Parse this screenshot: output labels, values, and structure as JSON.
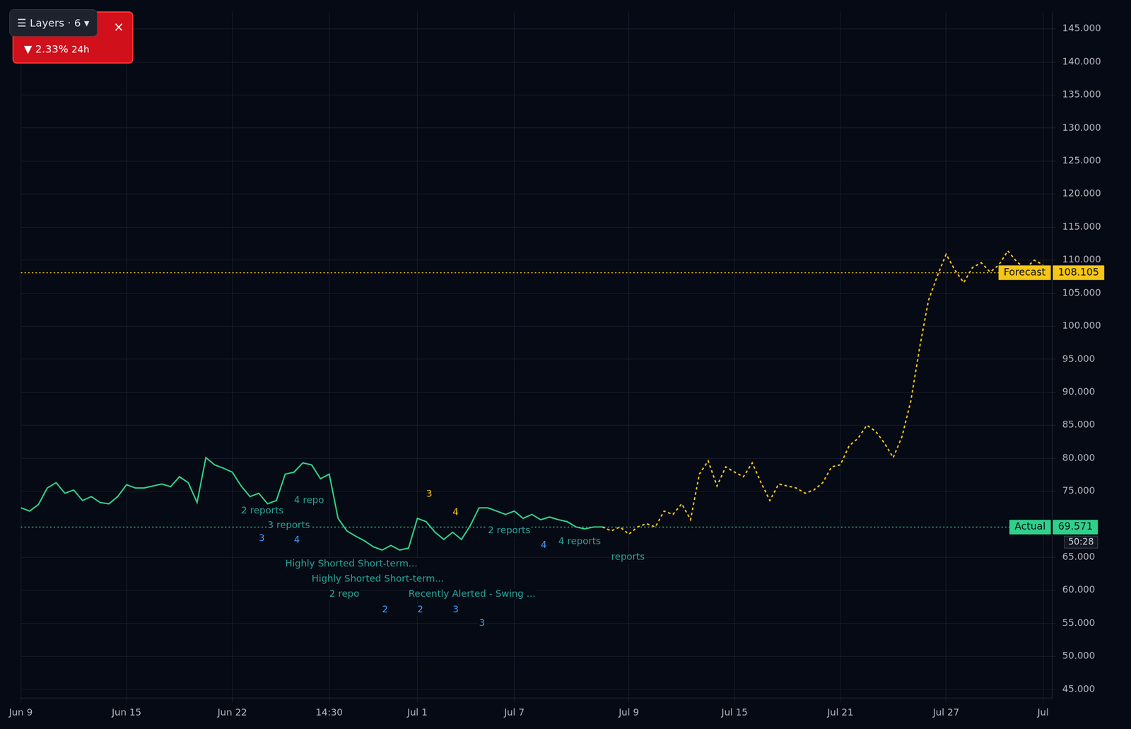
{
  "header": {
    "layers": "☰ Layers · 6 ▾",
    "close": "×",
    "change": "▼ 2.33%",
    "period": "24h"
  },
  "chart_data": {
    "type": "line",
    "categories": [
      "Jun 9",
      null,
      null,
      null,
      null,
      null,
      null,
      null,
      null,
      null,
      null,
      null,
      "Jun 15",
      null,
      null,
      null,
      null,
      null,
      null,
      null,
      null,
      null,
      null,
      null,
      "Jun 22",
      null,
      null,
      null,
      null,
      null,
      null,
      null,
      null,
      null,
      null,
      "14:30",
      null,
      null,
      null,
      null,
      null,
      null,
      null,
      null,
      null,
      "Jul 1",
      null,
      null,
      null,
      null,
      null,
      null,
      null,
      null,
      null,
      null,
      "Jul 7",
      null,
      null,
      null,
      null,
      null,
      null,
      null,
      null,
      null,
      null,
      null,
      null,
      "Jul 9",
      null,
      null,
      null,
      null,
      null,
      null,
      null,
      null,
      null,
      null,
      null,
      "Jul 15",
      null,
      null,
      null,
      null,
      null,
      null,
      null,
      null,
      null,
      null,
      null,
      "Jul 21",
      null,
      null,
      null,
      null,
      null,
      null,
      null,
      null,
      null,
      null,
      null,
      "Jul 27",
      null,
      null,
      null,
      null,
      null,
      null,
      null,
      null,
      null,
      null,
      "Jul",
      null
    ],
    "series": [
      {
        "name": "Actual",
        "color": "#2fd18a",
        "line_style": "solid",
        "values": [
          72.5,
          72.0,
          73.0,
          75.5,
          76.3,
          74.7,
          75.2,
          73.6,
          74.2,
          73.3,
          73.1,
          74.2,
          76.0,
          75.5,
          75.5,
          75.8,
          76.1,
          75.7,
          77.2,
          76.3,
          73.3,
          80.1,
          79.0,
          78.5,
          77.9,
          75.8,
          74.2,
          74.7,
          73.1,
          73.6,
          77.6,
          77.9,
          79.3,
          79.0,
          76.9,
          77.6,
          70.9,
          69.0,
          68.2,
          67.5,
          66.6,
          66.1,
          66.8,
          66.1,
          66.4,
          70.9,
          70.4,
          68.8,
          67.7,
          68.8,
          67.7,
          69.8,
          72.5,
          72.5,
          72.0,
          71.5,
          72.0,
          70.9,
          71.5,
          70.7,
          71.1,
          70.7,
          70.4,
          69.6,
          69.3,
          69.6,
          69.6,
          null,
          null,
          null,
          null,
          null,
          null,
          null,
          null,
          null,
          null,
          null,
          null,
          null,
          null,
          null,
          null,
          null,
          null,
          null,
          null,
          null,
          null,
          null,
          null,
          null,
          null,
          null,
          null,
          null,
          null,
          null,
          null,
          null,
          null,
          null,
          null,
          null,
          null,
          null,
          null,
          null,
          null,
          null,
          null,
          null,
          null,
          null,
          null,
          null,
          null,
          null
        ]
      },
      {
        "name": "Forecast",
        "color": "#f5c518",
        "line_style": "dotted",
        "values": [
          null,
          null,
          null,
          null,
          null,
          null,
          null,
          null,
          null,
          null,
          null,
          null,
          null,
          null,
          null,
          null,
          null,
          null,
          null,
          null,
          null,
          null,
          null,
          null,
          null,
          null,
          null,
          null,
          null,
          null,
          null,
          null,
          null,
          null,
          null,
          null,
          null,
          null,
          null,
          null,
          null,
          null,
          null,
          null,
          null,
          null,
          null,
          null,
          null,
          null,
          null,
          null,
          null,
          null,
          null,
          null,
          null,
          null,
          null,
          null,
          null,
          null,
          null,
          null,
          null,
          null,
          69.6,
          69.0,
          69.6,
          68.5,
          69.6,
          70.1,
          69.6,
          72.0,
          71.5,
          73.1,
          70.7,
          77.6,
          79.6,
          75.8,
          78.7,
          77.9,
          77.2,
          79.3,
          76.3,
          73.6,
          76.1,
          75.8,
          75.5,
          74.7,
          75.2,
          76.3,
          78.7,
          79.0,
          81.9,
          83.0,
          85.0,
          84.1,
          82.3,
          80.1,
          83.3,
          88.7,
          96.8,
          103.9,
          107.6,
          110.9,
          108.5,
          106.6,
          108.9,
          109.6,
          108.2,
          109.3,
          111.4,
          109.8,
          108.7,
          110.0,
          109.3,
          null
        ]
      }
    ],
    "ylim": [
      43.7,
      147.6
    ],
    "yticks": [
      {
        "value": 45,
        "label": "45.000"
      },
      {
        "value": 50,
        "label": "50.000"
      },
      {
        "value": 55,
        "label": "55.000"
      },
      {
        "value": 60,
        "label": "60.000"
      },
      {
        "value": 65,
        "label": "65.000"
      },
      {
        "value": 75,
        "label": "75.000"
      },
      {
        "value": 80,
        "label": "80.000"
      },
      {
        "value": 85,
        "label": "85.000"
      },
      {
        "value": 90,
        "label": "90.000"
      },
      {
        "value": 95,
        "label": "95.000"
      },
      {
        "value": 100,
        "label": "100.000"
      },
      {
        "value": 105,
        "label": "105.000"
      },
      {
        "value": 110,
        "label": "110.000"
      },
      {
        "value": 115,
        "label": "115.000"
      },
      {
        "value": 120,
        "label": "120.000"
      },
      {
        "value": 125,
        "label": "125.000"
      },
      {
        "value": 130,
        "label": "130.000"
      },
      {
        "value": 135,
        "label": "135.000"
      },
      {
        "value": 140,
        "label": "140.000"
      },
      {
        "value": 145,
        "label": "145.000"
      }
    ],
    "grid": true,
    "reference_lines": [
      {
        "name": "Forecast",
        "value": 108.105,
        "label": "108.105",
        "color": "#f5c518"
      },
      {
        "name": "Actual",
        "value": 69.571,
        "label": "69.571",
        "color": "#2fd18a"
      }
    ],
    "countdown": "50:28",
    "annotations": [
      {
        "text": "2 reports",
        "x": 25,
        "y": 72.0,
        "color": "#26a69a"
      },
      {
        "text": "3 reports",
        "x": 28,
        "y": 69.8,
        "color": "#26a69a"
      },
      {
        "text": "4 repo",
        "x": 31,
        "y": 73.6,
        "color": "#26a69a"
      },
      {
        "text": "Highly Shorted Short-term...",
        "x": 30,
        "y": 64.0,
        "color": "#26a69a"
      },
      {
        "text": "Highly Shorted Short-term...",
        "x": 33,
        "y": 61.7,
        "color": "#26a69a"
      },
      {
        "text": "2 repo",
        "x": 35,
        "y": 59.4,
        "color": "#26a69a"
      },
      {
        "text": "Recently Alerted - Swing ...",
        "x": 44,
        "y": 59.4,
        "color": "#26a69a"
      },
      {
        "text": "2 reports",
        "x": 53,
        "y": 69.0,
        "color": "#26a69a"
      },
      {
        "text": "4 reports",
        "x": 61,
        "y": 67.4,
        "color": "#26a69a"
      },
      {
        "text": "reports",
        "x": 67,
        "y": 65.0,
        "color": "#26a69a"
      },
      {
        "text": "3",
        "x": 27,
        "y": 67.8,
        "color": "#3b9cff"
      },
      {
        "text": "4",
        "x": 31,
        "y": 67.6,
        "color": "#3b9cff"
      },
      {
        "text": "2",
        "x": 41,
        "y": 57.0,
        "color": "#3b9cff"
      },
      {
        "text": "2",
        "x": 45,
        "y": 57.0,
        "color": "#3b9cff"
      },
      {
        "text": "3",
        "x": 49,
        "y": 57.0,
        "color": "#3b9cff"
      },
      {
        "text": "3",
        "x": 52,
        "y": 55.0,
        "color": "#3b9cff"
      },
      {
        "text": "4",
        "x": 59,
        "y": 66.8,
        "color": "#3b9cff"
      },
      {
        "text": "3",
        "x": 46,
        "y": 74.5,
        "color": "#f5c518"
      },
      {
        "text": "4",
        "x": 49,
        "y": 71.8,
        "color": "#f5c518"
      }
    ]
  }
}
